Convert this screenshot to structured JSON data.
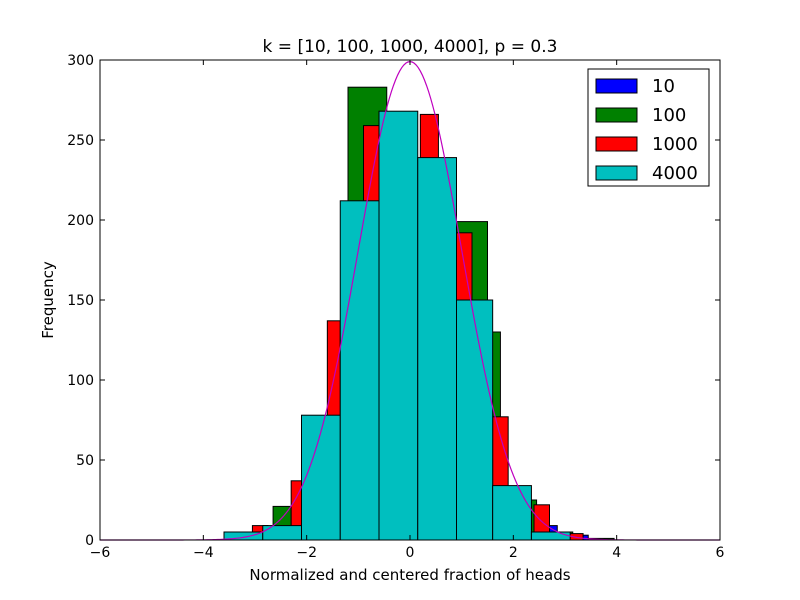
{
  "chart_data": {
    "type": "bar",
    "title": "k = [10, 100, 1000, 4000], p = 0.3",
    "xlabel": "Normalized and centered fraction of heads",
    "ylabel": "Frequency",
    "xlim": [
      -6,
      6
    ],
    "ylim": [
      0,
      300
    ],
    "xticks": [
      "−6",
      "−4",
      "−2",
      "0",
      "2",
      "4",
      "6"
    ],
    "yticks": [
      "0",
      "50",
      "100",
      "150",
      "200",
      "250",
      "300"
    ],
    "legend_position": "top-right",
    "grid": false,
    "series": [
      {
        "name": "10",
        "color": "#0000ff",
        "bins": [
          {
            "x0": 2.55,
            "x1": 2.85,
            "y": 9
          },
          {
            "x0": 3.15,
            "x1": 3.45,
            "y": 3
          }
        ]
      },
      {
        "name": "100",
        "color": "#008000",
        "bins": [
          {
            "x0": -3.0,
            "x1": -2.65,
            "y": 3
          },
          {
            "x0": -2.65,
            "x1": -2.3,
            "y": 21
          },
          {
            "x0": -1.85,
            "x1": -1.4,
            "y": 74
          },
          {
            "x0": -1.2,
            "x1": -0.45,
            "y": 283
          },
          {
            "x0": 0.85,
            "x1": 1.5,
            "y": 199
          },
          {
            "x0": 1.5,
            "x1": 1.75,
            "y": 130
          },
          {
            "x0": 2.35,
            "x1": 2.45,
            "y": 25
          },
          {
            "x0": 2.85,
            "x1": 3.15,
            "y": 5
          },
          {
            "x0": 3.45,
            "x1": 3.95,
            "y": 1
          }
        ]
      },
      {
        "name": "1000",
        "color": "#ff0000",
        "bins": [
          {
            "x0": -3.05,
            "x1": -2.75,
            "y": 9
          },
          {
            "x0": -2.3,
            "x1": -2.05,
            "y": 37
          },
          {
            "x0": -1.6,
            "x1": -1.35,
            "y": 137
          },
          {
            "x0": -0.9,
            "x1": -0.6,
            "y": 259
          },
          {
            "x0": 0.2,
            "x1": 0.55,
            "y": 266
          },
          {
            "x0": 0.85,
            "x1": 1.2,
            "y": 192
          },
          {
            "x0": 1.6,
            "x1": 1.9,
            "y": 77
          },
          {
            "x0": 2.4,
            "x1": 2.7,
            "y": 22
          },
          {
            "x0": 3.05,
            "x1": 3.35,
            "y": 4
          }
        ]
      },
      {
        "name": "4000",
        "color": "#00bfbf",
        "bins": [
          {
            "x0": -3.6,
            "x1": -2.85,
            "y": 5
          },
          {
            "x0": -2.85,
            "x1": -2.1,
            "y": 9
          },
          {
            "x0": -2.1,
            "x1": -1.35,
            "y": 78
          },
          {
            "x0": -1.35,
            "x1": -0.6,
            "y": 212
          },
          {
            "x0": -0.6,
            "x1": 0.15,
            "y": 268
          },
          {
            "x0": 0.15,
            "x1": 0.9,
            "y": 239
          },
          {
            "x0": 0.9,
            "x1": 1.6,
            "y": 150
          },
          {
            "x0": 1.6,
            "x1": 2.35,
            "y": 34
          },
          {
            "x0": 2.35,
            "x1": 3.1,
            "y": 5
          }
        ]
      }
    ],
    "curve": {
      "type": "normal-pdf",
      "color": "#bf00bf",
      "mean": 0,
      "sd": 1,
      "peak": 299,
      "xrange": [
        -6,
        6
      ]
    }
  }
}
